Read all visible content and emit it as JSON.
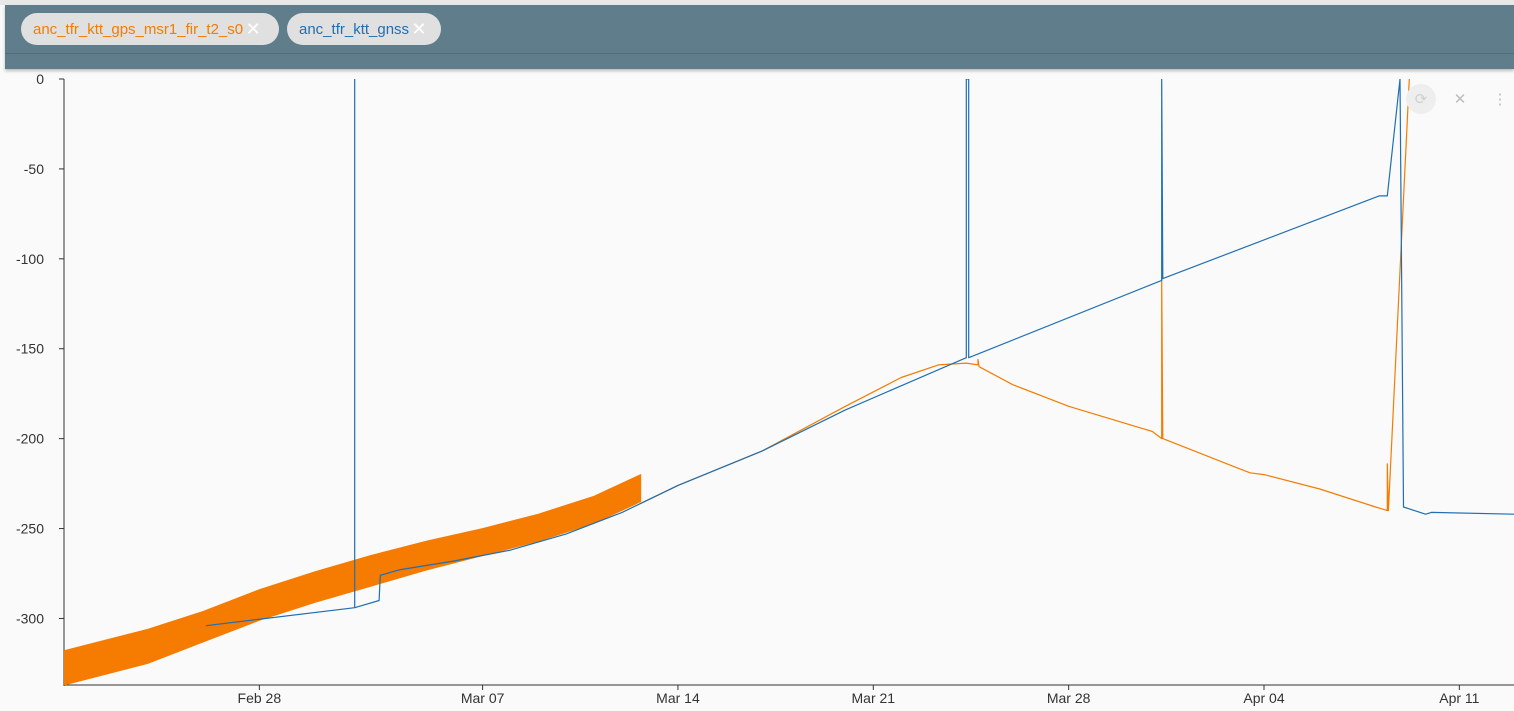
{
  "legend": {
    "chips": [
      {
        "label": "anc_tfr_ktt_gps_msr1_fir_t2_s0",
        "color": "#f57c00"
      },
      {
        "label": "anc_tfr_ktt_gnss",
        "color": "#1f6fb2"
      }
    ],
    "remove_icon": "close-icon"
  },
  "controls": {
    "refresh_icon": "refresh-icon",
    "close_icon": "close-icon",
    "more_icon": "more-vert-icon"
  },
  "chart_data": {
    "type": "line",
    "title": "",
    "xlabel": "",
    "ylabel": "",
    "x_type": "date",
    "xlim": [
      "2020-02-21",
      "2020-04-12T23:00"
    ],
    "ylim": [
      -337,
      0
    ],
    "x_ticks": [
      {
        "label": "Feb 28",
        "date": "2020-02-28"
      },
      {
        "label": "Mar 07",
        "date": "2020-03-07"
      },
      {
        "label": "Mar 14",
        "date": "2020-03-14"
      },
      {
        "label": "Mar 21",
        "date": "2020-03-21"
      },
      {
        "label": "Mar 28",
        "date": "2020-03-28"
      },
      {
        "label": "Apr 04",
        "date": "2020-04-04"
      },
      {
        "label": "Apr 11",
        "date": "2020-04-11"
      }
    ],
    "y_ticks": [
      0,
      -50,
      -100,
      -150,
      -200,
      -250,
      -300
    ],
    "grid": false,
    "series": [
      {
        "name": "anc_tfr_ktt_gps_msr1_fir_t2_s0",
        "color": "#f57c00",
        "band": {
          "x": [
            "2020-02-21",
            "2020-02-24",
            "2020-02-26",
            "2020-02-28",
            "2020-03-01",
            "2020-03-03",
            "2020-03-05",
            "2020-03-07",
            "2020-03-09",
            "2020-03-11",
            "2020-03-12T16:00"
          ],
          "upper": [
            -318,
            -306,
            -296,
            -284,
            -274,
            -265,
            -257,
            -250,
            -242,
            -232,
            -220
          ],
          "lower": [
            -337,
            -325,
            -313,
            -301,
            -291,
            -282,
            -273,
            -265,
            -257,
            -247,
            -235
          ]
        },
        "points": [
          {
            "x": "2020-03-12T16:00",
            "y": -236
          },
          {
            "x": "2020-03-14",
            "y": -226
          },
          {
            "x": "2020-03-17",
            "y": -207
          },
          {
            "x": "2020-03-20",
            "y": -182
          },
          {
            "x": "2020-03-22",
            "y": -166
          },
          {
            "x": "2020-03-23T08:00",
            "y": -159
          },
          {
            "x": "2020-03-24T08:00",
            "y": -158
          },
          {
            "x": "2020-03-24T18:00",
            "y": -159
          },
          {
            "x": "2020-03-24T18:00",
            "y": -156
          },
          {
            "x": "2020-03-24T19:00",
            "y": -160
          },
          {
            "x": "2020-03-26",
            "y": -170
          },
          {
            "x": "2020-03-28",
            "y": -182
          },
          {
            "x": "2020-03-31",
            "y": -196
          },
          {
            "x": "2020-03-31T08:00",
            "y": -200
          },
          {
            "x": "2020-03-31T08:00",
            "y": -111
          },
          {
            "x": "2020-03-31T09:00",
            "y": -200
          },
          {
            "x": "2020-04-03",
            "y": -216
          },
          {
            "x": "2020-04-03T12:00",
            "y": -219
          },
          {
            "x": "2020-04-04",
            "y": -220
          },
          {
            "x": "2020-04-06",
            "y": -228
          },
          {
            "x": "2020-04-08",
            "y": -238
          },
          {
            "x": "2020-04-08T10:00",
            "y": -240
          },
          {
            "x": "2020-04-08T10:00",
            "y": -214
          },
          {
            "x": "2020-04-08T11:00",
            "y": -240
          },
          {
            "x": "2020-04-09T05:00",
            "y": 0
          }
        ]
      },
      {
        "name": "anc_tfr_ktt_gnss",
        "color": "#1f6fb2",
        "points": [
          {
            "x": "2020-02-26T02:00",
            "y": -304
          },
          {
            "x": "2020-03-02T10:00",
            "y": -294
          },
          {
            "x": "2020-03-02T10:00",
            "y": 0
          },
          {
            "x": "2020-03-02T10:00",
            "y": -294
          },
          {
            "x": "2020-03-03T07:00",
            "y": -290
          },
          {
            "x": "2020-03-03T08:00",
            "y": -276
          },
          {
            "x": "2020-03-04",
            "y": -273
          },
          {
            "x": "2020-03-06",
            "y": -268
          },
          {
            "x": "2020-03-08",
            "y": -262
          },
          {
            "x": "2020-03-10",
            "y": -253
          },
          {
            "x": "2020-03-12",
            "y": -241
          },
          {
            "x": "2020-03-14",
            "y": -226
          },
          {
            "x": "2020-03-17",
            "y": -207
          },
          {
            "x": "2020-03-20",
            "y": -184
          },
          {
            "x": "2020-03-24T08:00",
            "y": -155
          },
          {
            "x": "2020-03-24T08:00",
            "y": 0
          },
          {
            "x": "2020-03-24T10:00",
            "y": 0
          },
          {
            "x": "2020-03-24T10:00",
            "y": -155
          },
          {
            "x": "2020-03-31T08:00",
            "y": -112
          },
          {
            "x": "2020-03-31T08:00",
            "y": 0
          },
          {
            "x": "2020-03-31T09:00",
            "y": -111
          },
          {
            "x": "2020-04-08T03:00",
            "y": -65
          },
          {
            "x": "2020-04-08T10:00",
            "y": -65
          },
          {
            "x": "2020-04-08T21:00",
            "y": 0
          },
          {
            "x": "2020-04-09",
            "y": -238
          },
          {
            "x": "2020-04-09T19:00",
            "y": -242
          },
          {
            "x": "2020-04-10",
            "y": -241
          },
          {
            "x": "2020-04-12T23:00",
            "y": -242
          }
        ]
      }
    ]
  }
}
